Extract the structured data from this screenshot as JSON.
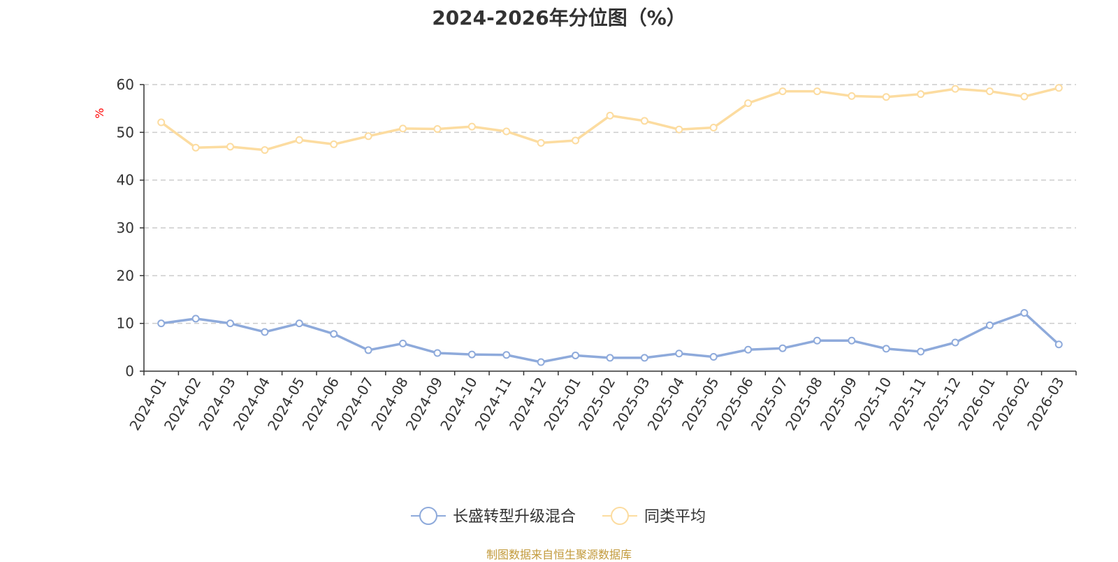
{
  "chart_data": {
    "type": "line",
    "title": "2024-2026年分位图（%）",
    "ylabel": "%",
    "ylim": [
      0,
      60
    ],
    "yticks": [
      0,
      10,
      20,
      30,
      40,
      50,
      60
    ],
    "grid": true,
    "legend_position": "bottom-center",
    "categories": [
      "2024-01",
      "2024-02",
      "2024-03",
      "2024-04",
      "2024-05",
      "2024-06",
      "2024-07",
      "2024-08",
      "2024-09",
      "2024-10",
      "2024-11",
      "2024-12",
      "2025-01",
      "2025-02",
      "2025-03",
      "2025-04",
      "2025-05",
      "2025-06",
      "2025-07",
      "2025-08",
      "2025-09",
      "2025-10",
      "2025-11",
      "2025-12",
      "2026-01",
      "2026-02",
      "2026-03"
    ],
    "series": [
      {
        "name": "长盛转型升级混合",
        "color": "#8eaadb",
        "values": [
          10.0,
          11.0,
          10.0,
          8.2,
          10.0,
          7.8,
          4.4,
          5.8,
          3.8,
          3.5,
          3.4,
          1.9,
          3.3,
          2.8,
          2.8,
          3.7,
          3.0,
          4.5,
          4.8,
          6.4,
          6.4,
          4.7,
          4.1,
          6.0,
          9.6,
          12.2,
          5.6
        ]
      },
      {
        "name": "同类平均",
        "color": "#fcdca0",
        "values": [
          52.1,
          46.8,
          47.0,
          46.3,
          48.4,
          47.5,
          49.2,
          50.8,
          50.7,
          51.2,
          50.2,
          47.8,
          48.3,
          53.5,
          52.4,
          50.6,
          51.0,
          56.1,
          58.6,
          58.6,
          57.6,
          57.4,
          58.0,
          59.1,
          58.6,
          57.5,
          59.3
        ]
      }
    ]
  },
  "source": "制图数据来自恒生聚源数据库"
}
